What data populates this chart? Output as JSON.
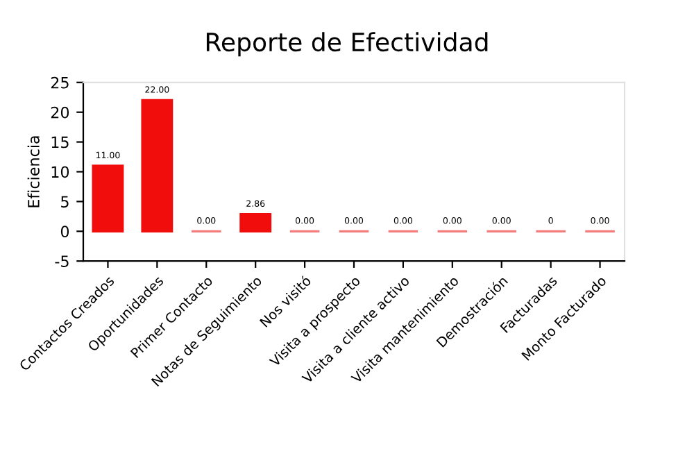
{
  "chart_data": {
    "type": "bar",
    "title": "Reporte de Efectividad",
    "ylabel": "Eficiencia",
    "categories": [
      "Contactos Creados",
      "Oportunidades",
      "Primer Contacto",
      "Notas de Seguimiento",
      "Nos visitó",
      "Visita a prospecto",
      "Visita a cliente activo",
      "Visita mantenimiento",
      "Demostración",
      "Facturadas",
      "Monto Facturado"
    ],
    "values": [
      11,
      22,
      0,
      2.86,
      0,
      0,
      0,
      0,
      0,
      0,
      0
    ],
    "value_labels": [
      "11.00",
      "22.00",
      "0.00",
      "2.86",
      "0.00",
      "0.00",
      "0.00",
      "0.00",
      "0.00",
      "0",
      "0.00"
    ],
    "colors": [
      "#f20d0d",
      "#f20d0d",
      "#f47c7c",
      "#f20d0d",
      "#f47c7c",
      "#f47c7c",
      "#f47c7c",
      "#f47c7c",
      "#f47c7c",
      "#f47c7c",
      "#f47c7c"
    ],
    "ylim": [
      -5,
      25
    ],
    "yticks": [
      -5,
      0,
      5,
      10,
      15,
      20,
      25
    ],
    "grid": false
  }
}
